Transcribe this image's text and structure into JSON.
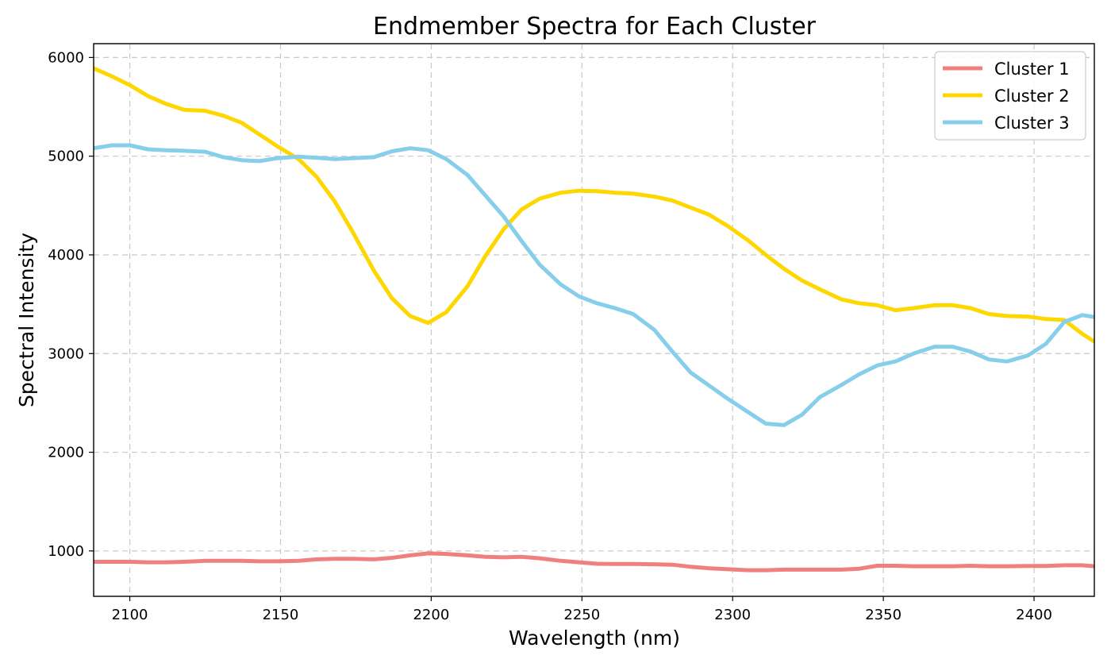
{
  "chart_data": {
    "type": "line",
    "title": "Endmember Spectra for Each Cluster",
    "xlabel": "Wavelength (nm)",
    "ylabel": "Spectral Intensity",
    "xlim": [
      2088,
      2420
    ],
    "ylim": [
      540,
      6140
    ],
    "xticks": [
      2100,
      2150,
      2200,
      2250,
      2300,
      2350,
      2400
    ],
    "yticks": [
      1000,
      2000,
      3000,
      4000,
      5000,
      6000
    ],
    "grid": true,
    "legend_position": "top-right",
    "x": [
      2088,
      2094,
      2100,
      2106,
      2112,
      2118,
      2125,
      2131,
      2137,
      2143,
      2149,
      2156,
      2162,
      2168,
      2174,
      2181,
      2187,
      2193,
      2199,
      2205,
      2212,
      2218,
      2224,
      2230,
      2236,
      2243,
      2249,
      2255,
      2261,
      2267,
      2274,
      2280,
      2286,
      2292,
      2298,
      2305,
      2311,
      2317,
      2323,
      2329,
      2336,
      2342,
      2348,
      2354,
      2360,
      2367,
      2373,
      2379,
      2385,
      2391,
      2398,
      2404,
      2410,
      2416,
      2420
    ],
    "series": [
      {
        "name": "Cluster 1",
        "color": "#f08080",
        "values": [
          890,
          890,
          890,
          885,
          885,
          890,
          900,
          900,
          900,
          895,
          895,
          900,
          915,
          920,
          920,
          915,
          930,
          955,
          975,
          970,
          955,
          940,
          935,
          940,
          925,
          900,
          885,
          870,
          868,
          868,
          865,
          860,
          840,
          825,
          815,
          805,
          805,
          810,
          810,
          810,
          810,
          820,
          850,
          850,
          845,
          845,
          845,
          850,
          845,
          845,
          848,
          848,
          855,
          855,
          845
        ]
      },
      {
        "name": "Cluster 2",
        "color": "#ffd700",
        "values": [
          5890,
          5810,
          5720,
          5610,
          5530,
          5470,
          5460,
          5410,
          5340,
          5220,
          5100,
          4970,
          4790,
          4540,
          4230,
          3840,
          3560,
          3380,
          3310,
          3420,
          3680,
          3990,
          4260,
          4460,
          4570,
          4630,
          4650,
          4645,
          4630,
          4620,
          4590,
          4550,
          4480,
          4410,
          4300,
          4150,
          4000,
          3860,
          3740,
          3650,
          3550,
          3510,
          3490,
          3440,
          3460,
          3490,
          3490,
          3460,
          3400,
          3380,
          3375,
          3350,
          3340,
          3200,
          3120
        ]
      },
      {
        "name": "Cluster 3",
        "color": "#87ceeb",
        "values": [
          5080,
          5110,
          5110,
          5070,
          5060,
          5055,
          5045,
          4990,
          4960,
          4950,
          4980,
          4995,
          4985,
          4970,
          4980,
          4990,
          5050,
          5080,
          5060,
          4970,
          4810,
          4600,
          4390,
          4140,
          3900,
          3700,
          3580,
          3510,
          3460,
          3400,
          3240,
          3020,
          2810,
          2680,
          2550,
          2410,
          2290,
          2275,
          2380,
          2560,
          2680,
          2790,
          2880,
          2920,
          3000,
          3070,
          3070,
          3020,
          2940,
          2920,
          2980,
          3100,
          3320,
          3390,
          3370
        ]
      }
    ]
  }
}
